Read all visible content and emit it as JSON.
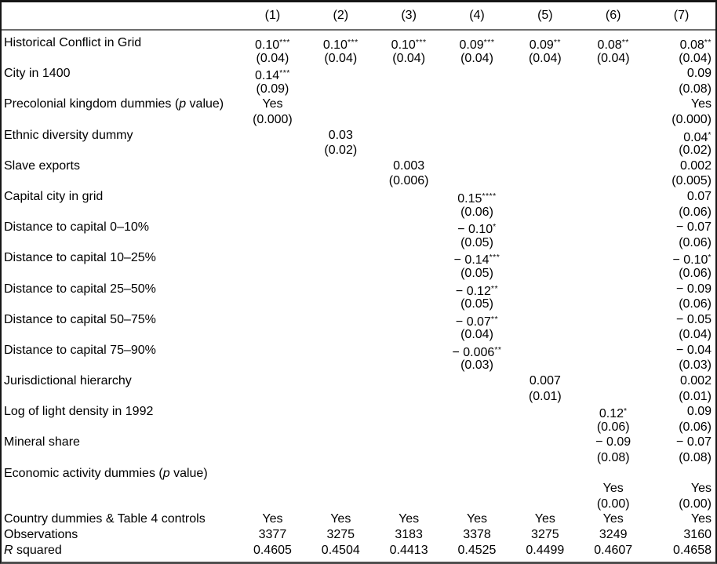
{
  "table": {
    "column_headers": [
      "(1)",
      "(2)",
      "(3)",
      "(4)",
      "(5)",
      "(6)",
      "(7)"
    ],
    "rows": [
      {
        "id": "historical-conflict",
        "label_segments": [
          {
            "t": "Historical Conflict in Grid"
          }
        ],
        "values": [
          "0.10***",
          "0.10***",
          "0.10***",
          "0.09***",
          "0.09**",
          "0.08**",
          "0.08**"
        ],
        "se": [
          "(0.04)",
          "(0.04)",
          "(0.04)",
          "(0.04)",
          "(0.04)",
          "(0.04)",
          "(0.04)"
        ]
      },
      {
        "id": "city-in-1400",
        "label_segments": [
          {
            "t": "City in 1400"
          }
        ],
        "values": [
          "0.14***",
          "",
          "",
          "",
          "",
          "",
          "0.09"
        ],
        "se": [
          "(0.09)",
          "",
          "",
          "",
          "",
          "",
          "(0.08)"
        ]
      },
      {
        "id": "precolonial-kingdom-dummies",
        "label_segments": [
          {
            "t": "Precolonial kingdom dummies ("
          },
          {
            "t": "p",
            "i": true
          },
          {
            "t": " value)"
          }
        ],
        "values": [
          "Yes",
          "",
          "",
          "",
          "",
          "",
          "Yes"
        ],
        "se": [
          "(0.000)",
          "",
          "",
          "",
          "",
          "",
          "(0.000)"
        ]
      },
      {
        "id": "ethnic-diversity-dummy",
        "label_segments": [
          {
            "t": "Ethnic diversity dummy"
          }
        ],
        "values": [
          "",
          "0.03",
          "",
          "",
          "",
          "",
          "0.04*"
        ],
        "se": [
          "",
          "(0.02)",
          "",
          "",
          "",
          "",
          "(0.02)"
        ]
      },
      {
        "id": "slave-exports",
        "label_segments": [
          {
            "t": "Slave exports"
          }
        ],
        "values": [
          "",
          "",
          "0.003",
          "",
          "",
          "",
          "0.002"
        ],
        "se": [
          "",
          "",
          "(0.006)",
          "",
          "",
          "",
          "(0.005)"
        ]
      },
      {
        "id": "capital-city-in-grid",
        "label_segments": [
          {
            "t": "Capital city in grid"
          }
        ],
        "values": [
          "",
          "",
          "",
          "0.15****",
          "",
          "",
          "0.07"
        ],
        "se": [
          "",
          "",
          "",
          "(0.06)",
          "",
          "",
          "(0.06)"
        ]
      },
      {
        "id": "distance-to-capital-0-10",
        "label_segments": [
          {
            "t": "Distance to capital 0–10%"
          }
        ],
        "values": [
          "",
          "",
          "",
          "− 0.10*",
          "",
          "",
          "− 0.07"
        ],
        "se": [
          "",
          "",
          "",
          "(0.05)",
          "",
          "",
          "(0.06)"
        ]
      },
      {
        "id": "distance-to-capital-10-25",
        "label_segments": [
          {
            "t": "Distance to capital 10–25%"
          }
        ],
        "values": [
          "",
          "",
          "",
          "− 0.14***",
          "",
          "",
          "− 0.10*"
        ],
        "se": [
          "",
          "",
          "",
          "(0.05)",
          "",
          "",
          "(0.06)"
        ]
      },
      {
        "id": "distance-to-capital-25-50",
        "label_segments": [
          {
            "t": "Distance to capital 25–50%"
          }
        ],
        "values": [
          "",
          "",
          "",
          "− 0.12**",
          "",
          "",
          "− 0.09"
        ],
        "se": [
          "",
          "",
          "",
          "(0.05)",
          "",
          "",
          "(0.06)"
        ]
      },
      {
        "id": "distance-to-capital-50-75",
        "label_segments": [
          {
            "t": "Distance to capital 50–75%"
          }
        ],
        "values": [
          "",
          "",
          "",
          "− 0.07**",
          "",
          "",
          "− 0.05"
        ],
        "se": [
          "",
          "",
          "",
          "(0.04)",
          "",
          "",
          "(0.04)"
        ]
      },
      {
        "id": "distance-to-capital-75-90",
        "label_segments": [
          {
            "t": "Distance to capital 75–90%"
          }
        ],
        "values": [
          "",
          "",
          "",
          "− 0.006**",
          "",
          "",
          "− 0.04"
        ],
        "se": [
          "",
          "",
          "",
          "(0.03)",
          "",
          "",
          "(0.03)"
        ]
      },
      {
        "id": "jurisdictional-hierarchy",
        "label_segments": [
          {
            "t": "Jurisdictional hierarchy"
          }
        ],
        "values": [
          "",
          "",
          "",
          "",
          "0.007",
          "",
          "0.002"
        ],
        "se": [
          "",
          "",
          "",
          "",
          "(0.01)",
          "",
          "(0.01)"
        ]
      },
      {
        "id": "log-light-density-1992",
        "label_segments": [
          {
            "t": "Log of light density in 1992"
          }
        ],
        "values": [
          "",
          "",
          "",
          "",
          "",
          "0.12*",
          "0.09"
        ],
        "se": [
          "",
          "",
          "",
          "",
          "",
          "(0.06)",
          "(0.06)"
        ]
      },
      {
        "id": "mineral-share",
        "label_segments": [
          {
            "t": "Mineral share"
          }
        ],
        "values": [
          "",
          "",
          "",
          "",
          "",
          "− 0.09",
          "− 0.07"
        ],
        "se": [
          "",
          "",
          "",
          "",
          "",
          "(0.08)",
          "(0.08)"
        ]
      },
      {
        "id": "economic-activity-dummies",
        "label_own_line": true,
        "label_segments": [
          {
            "t": "Economic activity dummies ("
          },
          {
            "t": "p",
            "i": true
          },
          {
            "t": " value)"
          }
        ],
        "values": [
          "",
          "",
          "",
          "",
          "",
          "Yes",
          "Yes"
        ],
        "se": [
          "",
          "",
          "",
          "",
          "",
          "(0.00)",
          "(0.00)"
        ]
      },
      {
        "id": "country-dummies-table4-controls",
        "single_line": true,
        "label_segments": [
          {
            "t": "Country dummies & Table 4 controls"
          }
        ],
        "values": [
          "Yes",
          "Yes",
          "Yes",
          "Yes",
          "Yes",
          "Yes",
          "Yes"
        ]
      },
      {
        "id": "observations",
        "single_line": true,
        "label_segments": [
          {
            "t": "Observations"
          }
        ],
        "values": [
          "3377",
          "3275",
          "3183",
          "3378",
          "3275",
          "3249",
          "3160"
        ]
      },
      {
        "id": "r-squared",
        "single_line": true,
        "label_segments": [
          {
            "t": "R",
            "i": true
          },
          {
            "t": " squared"
          }
        ],
        "values": [
          "0.4605",
          "0.4504",
          "0.4413",
          "0.4525",
          "0.4499",
          "0.4607",
          "0.4658"
        ]
      }
    ]
  }
}
